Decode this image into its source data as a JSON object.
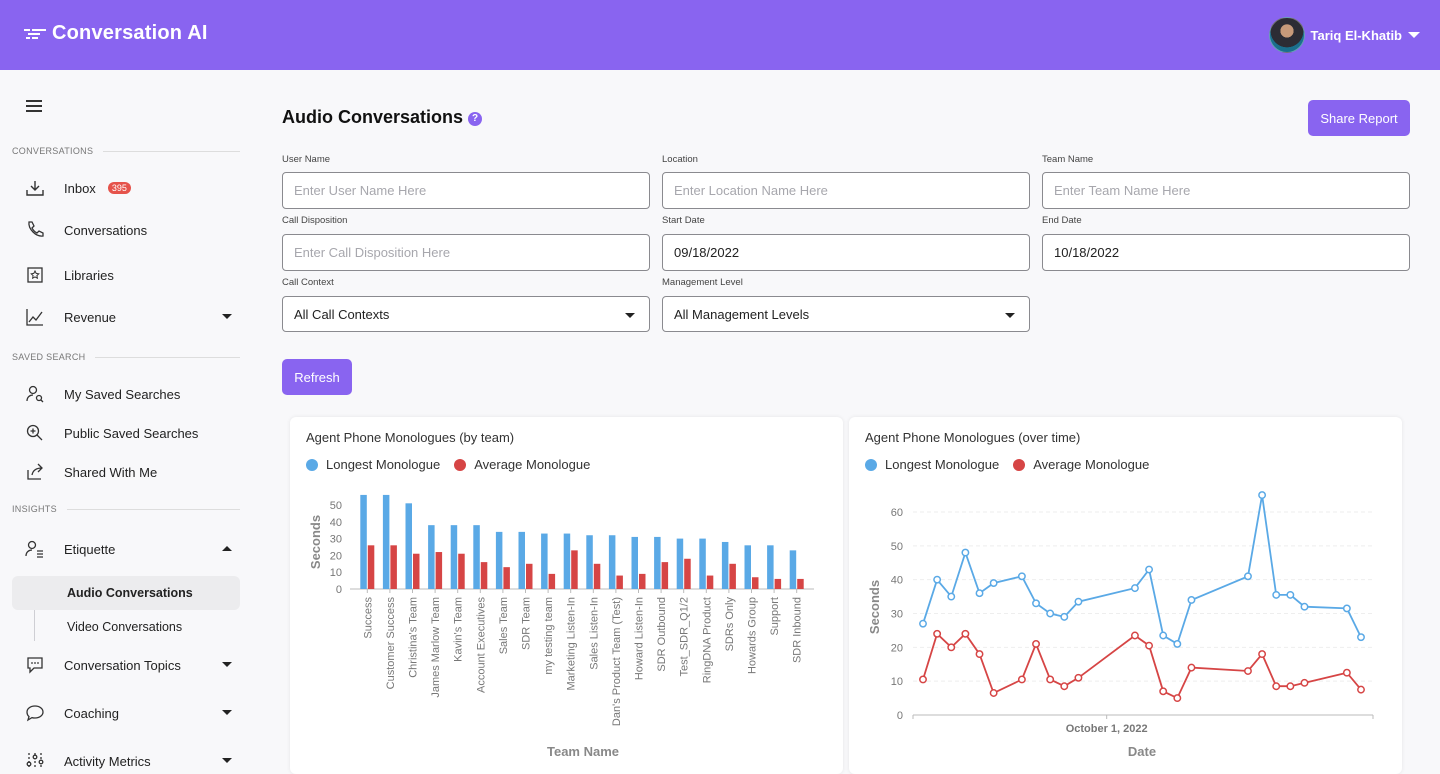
{
  "app": {
    "name": "Conversation AI"
  },
  "user": {
    "name": "Tariq El-Khatib"
  },
  "sidebar": {
    "sections": {
      "conversations": "CONVERSATIONS",
      "saved_search": "SAVED SEARCH",
      "insights": "INSIGHTS"
    },
    "inbox": {
      "label": "Inbox",
      "badge": "395"
    },
    "conversations": "Conversations",
    "libraries": "Libraries",
    "revenue": "Revenue",
    "my_saved": "My Saved Searches",
    "public_saved": "Public Saved Searches",
    "shared": "Shared With Me",
    "etiquette": "Etiquette",
    "audio": "Audio Conversations",
    "video": "Video Conversations",
    "topics": "Conversation Topics",
    "coaching": "Coaching",
    "activity": "Activity Metrics"
  },
  "main": {
    "title": "Audio Conversations",
    "help": "?",
    "share_label": "Share Report",
    "refresh_label": "Refresh",
    "fields": {
      "user_name": {
        "label": "User Name",
        "placeholder": "Enter User Name Here",
        "value": ""
      },
      "location": {
        "label": "Location",
        "placeholder": "Enter Location Name Here",
        "value": ""
      },
      "team_name": {
        "label": "Team Name",
        "placeholder": "Enter Team Name Here",
        "value": ""
      },
      "call_disposition": {
        "label": "Call Disposition",
        "placeholder": "Enter Call Disposition Here",
        "value": ""
      },
      "start_date": {
        "label": "Start Date",
        "value": "09/18/2022"
      },
      "end_date": {
        "label": "End Date",
        "value": "10/18/2022"
      },
      "call_context": {
        "label": "Call Context",
        "value": "All Call Contexts"
      },
      "management_level": {
        "label": "Management Level",
        "value": "All Management Levels"
      }
    }
  },
  "colors": {
    "accent": "#8964f0",
    "longest": "#5aa9e6",
    "average": "#d64545"
  },
  "chart_data": [
    {
      "type": "bar",
      "title": "Agent Phone Monologues (by team)",
      "xlabel": "Team Name",
      "ylabel": "Seconds",
      "ylim": [
        0,
        55
      ],
      "yticks": [
        0,
        10,
        20,
        30,
        40,
        50
      ],
      "legend_position": "top-left",
      "categories": [
        "Success",
        "Customer Success",
        "Christina's Team",
        "James Marlow Team",
        "Kavin's Team",
        "Account Executives",
        "Sales Team",
        "SDR Team",
        "my testing team",
        "Marketing Listen-In",
        "Sales Listen-In",
        "Dan's Product Team (Test)",
        "Howard Listen-In",
        "SDR Outbound",
        "Test_SDR_Q1/2",
        "RingDNA Product",
        "SDRs Only",
        "Howards Group",
        "Support",
        "SDR Inbound"
      ],
      "series": [
        {
          "name": "Longest Monologue",
          "values": [
            56,
            56,
            51,
            38,
            38,
            38,
            34,
            34,
            33,
            33,
            32,
            32,
            31,
            31,
            30,
            30,
            28,
            26,
            26,
            23
          ]
        },
        {
          "name": "Average Monologue",
          "values": [
            26,
            26,
            21,
            22,
            21,
            16,
            13,
            15,
            9,
            23,
            15,
            8,
            9,
            16,
            18,
            8,
            15,
            7,
            6,
            6
          ]
        }
      ]
    },
    {
      "type": "line",
      "title": "Agent Phone Monologues (over time)",
      "xlabel": "Date",
      "ylabel": "Seconds",
      "ylim": [
        0,
        65
      ],
      "yticks": [
        0,
        10,
        20,
        30,
        40,
        50,
        60
      ],
      "x_tick_label": "October 1, 2022",
      "legend_position": "top-left",
      "x": [
        "2022-09-18",
        "2022-09-19",
        "2022-09-20",
        "2022-09-21",
        "2022-09-22",
        "2022-09-23",
        "2022-09-25",
        "2022-09-26",
        "2022-09-27",
        "2022-09-28",
        "2022-09-29",
        "2022-10-03",
        "2022-10-04",
        "2022-10-05",
        "2022-10-06",
        "2022-10-07",
        "2022-10-11",
        "2022-10-12",
        "2022-10-13",
        "2022-10-14",
        "2022-10-15",
        "2022-10-18",
        "2022-10-19"
      ],
      "series": [
        {
          "name": "Longest Monologue",
          "values": [
            27,
            40,
            35,
            48,
            36,
            39,
            41,
            33,
            30,
            29,
            33.5,
            37.5,
            43,
            23.5,
            21,
            34,
            41,
            65,
            35.5,
            35.5,
            32,
            31.5,
            23
          ]
        },
        {
          "name": "Average Monologue",
          "values": [
            10.5,
            24,
            20,
            24,
            18,
            6.5,
            10.5,
            21,
            10.5,
            8.5,
            11,
            23.5,
            20.5,
            7,
            5,
            14,
            13,
            18,
            8.5,
            8.5,
            9.5,
            12.5,
            7.5
          ]
        }
      ]
    }
  ]
}
